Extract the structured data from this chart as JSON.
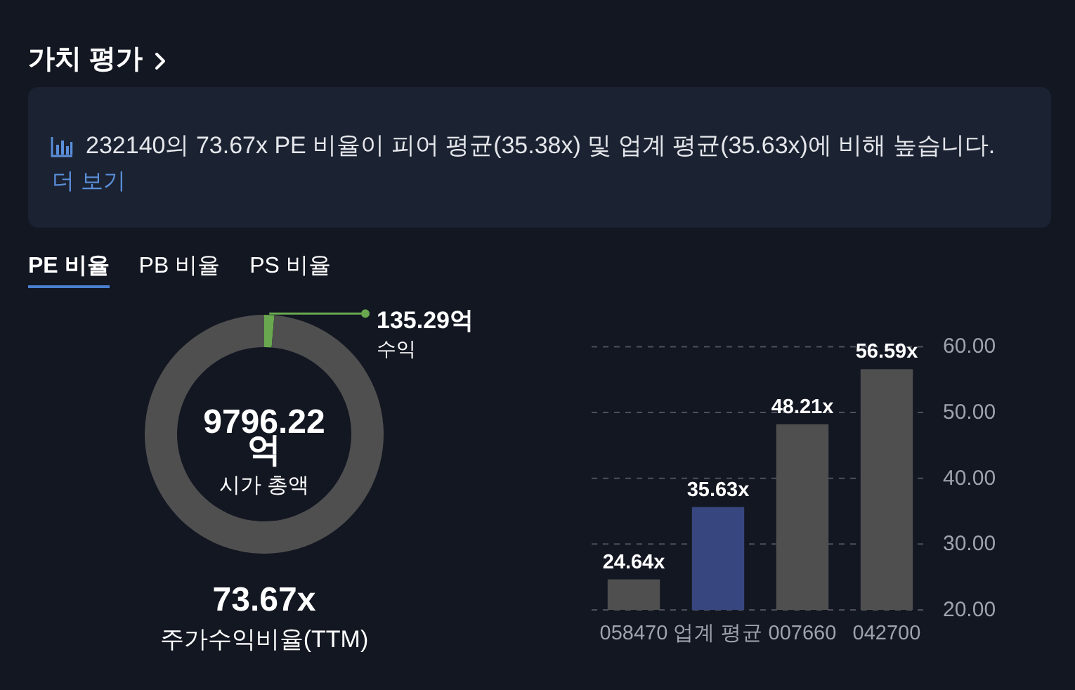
{
  "chart_data": [
    {
      "type": "other",
      "title": "가치 평가",
      "annotations": [
        "232140의 73.67x PE 비율이 피어 평균(35.38x) 및 업계 평균(35.63x)에 비해 높습니다.",
        "더 보기",
        "PE 비율",
        "PB 비율",
        "PS 비율"
      ]
    },
    {
      "type": "donut",
      "categories": [
        "수익",
        "시가 총액"
      ],
      "values": [
        135.29,
        9796.22
      ],
      "colors": [
        "#6aa84f",
        "#4f4f4f"
      ],
      "value_labels": [
        "135.29억",
        "9796.22억"
      ],
      "annotations": [
        "73.67x",
        "주가수익비율(TTM)"
      ]
    },
    {
      "type": "bar",
      "categories": [
        "058470",
        "업계 평균",
        "007660",
        "042700"
      ],
      "values": [
        24.64,
        35.63,
        48.21,
        56.59
      ],
      "colors": [
        "#4f4f4f",
        "#37467f",
        "#4f4f4f",
        "#4f4f4f"
      ],
      "value_labels": [
        "24.64x",
        "35.63x",
        "48.21x",
        "56.59x"
      ],
      "ylim": [
        20,
        60
      ],
      "yticks": [
        {
          "value": 20,
          "label": "20.00"
        },
        {
          "value": 30,
          "label": "30.00"
        },
        {
          "value": 40,
          "label": "40.00"
        },
        {
          "value": 50,
          "label": "50.00"
        },
        {
          "value": 60,
          "label": "60.00"
        }
      ],
      "grid": "y"
    }
  ]
}
